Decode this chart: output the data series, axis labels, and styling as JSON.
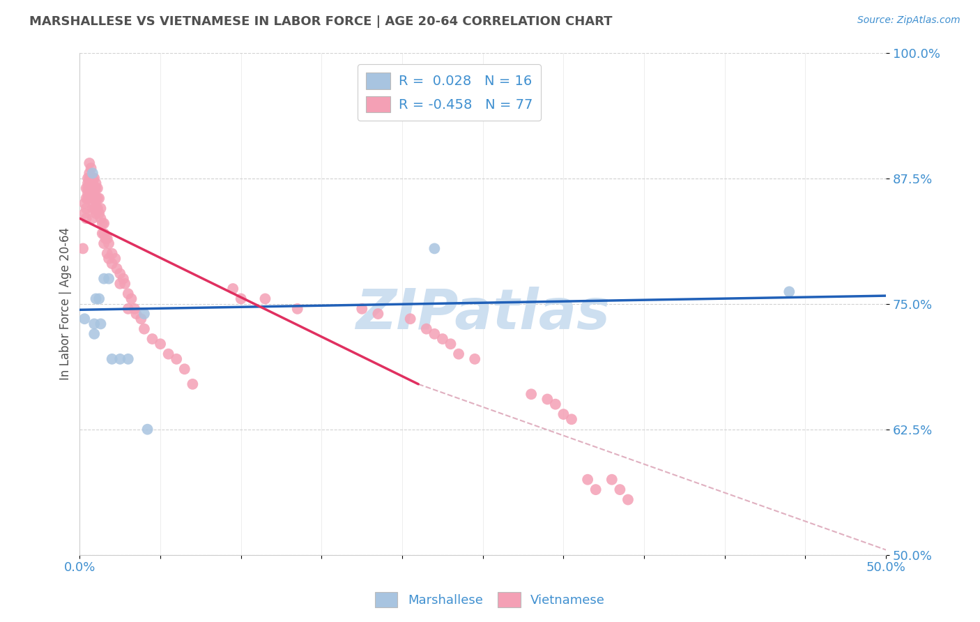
{
  "title": "MARSHALLESE VS VIETNAMESE IN LABOR FORCE | AGE 20-64 CORRELATION CHART",
  "source": "Source: ZipAtlas.com",
  "ylabel": "In Labor Force | Age 20-64",
  "xlim": [
    0.0,
    0.5
  ],
  "ylim": [
    0.5,
    1.0
  ],
  "yticks": [
    0.5,
    0.625,
    0.75,
    0.875,
    1.0
  ],
  "ytick_labels": [
    "50.0%",
    "62.5%",
    "75.0%",
    "87.5%",
    "100.0%"
  ],
  "xticks": [
    0.0,
    0.05,
    0.1,
    0.15,
    0.2,
    0.25,
    0.3,
    0.35,
    0.4,
    0.45,
    0.5
  ],
  "xtick_labels": [
    "0.0%",
    "",
    "",
    "",
    "",
    "",
    "",
    "",
    "",
    "",
    "50.0%"
  ],
  "marshallese_R": "0.028",
  "marshallese_N": "16",
  "vietnamese_R": "-0.458",
  "vietnamese_N": "77",
  "marshallese_color": "#a8c4e0",
  "vietnamese_color": "#f4a0b5",
  "marshallese_line_color": "#2060b8",
  "vietnamese_line_color": "#e03060",
  "dashed_extend_color": "#e0b0c0",
  "label_color": "#4090d0",
  "title_color": "#505050",
  "marshallese_x": [
    0.003,
    0.008,
    0.009,
    0.009,
    0.01,
    0.012,
    0.013,
    0.015,
    0.018,
    0.02,
    0.025,
    0.03,
    0.04,
    0.042,
    0.22,
    0.44
  ],
  "marshallese_y": [
    0.735,
    0.88,
    0.72,
    0.73,
    0.755,
    0.755,
    0.73,
    0.775,
    0.775,
    0.695,
    0.695,
    0.695,
    0.74,
    0.625,
    0.805,
    0.762
  ],
  "vietnamese_x": [
    0.002,
    0.003,
    0.003,
    0.004,
    0.004,
    0.004,
    0.004,
    0.005,
    0.005,
    0.005,
    0.005,
    0.005,
    0.006,
    0.006,
    0.006,
    0.006,
    0.006,
    0.007,
    0.007,
    0.007,
    0.007,
    0.007,
    0.007,
    0.008,
    0.008,
    0.008,
    0.008,
    0.008,
    0.008,
    0.009,
    0.009,
    0.009,
    0.009,
    0.009,
    0.01,
    0.01,
    0.01,
    0.01,
    0.01,
    0.011,
    0.011,
    0.011,
    0.012,
    0.012,
    0.013,
    0.013,
    0.014,
    0.014,
    0.015,
    0.015,
    0.015,
    0.016,
    0.017,
    0.017,
    0.018,
    0.018,
    0.02,
    0.02,
    0.022,
    0.023,
    0.025,
    0.025,
    0.027,
    0.028,
    0.03,
    0.03,
    0.032,
    0.034,
    0.035,
    0.038,
    0.04,
    0.045,
    0.05,
    0.055,
    0.06,
    0.065,
    0.07
  ],
  "vietnamese_y": [
    0.805,
    0.85,
    0.84,
    0.865,
    0.855,
    0.845,
    0.835,
    0.875,
    0.87,
    0.865,
    0.86,
    0.855,
    0.89,
    0.88,
    0.875,
    0.87,
    0.865,
    0.885,
    0.875,
    0.87,
    0.865,
    0.86,
    0.855,
    0.875,
    0.87,
    0.86,
    0.855,
    0.845,
    0.835,
    0.875,
    0.865,
    0.86,
    0.855,
    0.845,
    0.87,
    0.865,
    0.855,
    0.845,
    0.84,
    0.865,
    0.855,
    0.845,
    0.855,
    0.84,
    0.845,
    0.835,
    0.83,
    0.82,
    0.83,
    0.82,
    0.81,
    0.815,
    0.815,
    0.8,
    0.81,
    0.795,
    0.8,
    0.79,
    0.795,
    0.785,
    0.78,
    0.77,
    0.775,
    0.77,
    0.76,
    0.745,
    0.755,
    0.745,
    0.74,
    0.735,
    0.725,
    0.715,
    0.71,
    0.7,
    0.695,
    0.685,
    0.67
  ],
  "viet_extra_x": [
    0.095,
    0.1,
    0.115,
    0.135,
    0.175,
    0.185,
    0.205,
    0.215,
    0.22,
    0.225,
    0.23,
    0.235,
    0.245,
    0.28,
    0.29,
    0.295,
    0.3,
    0.305,
    0.315,
    0.32,
    0.33,
    0.335,
    0.34
  ],
  "viet_extra_y": [
    0.765,
    0.755,
    0.755,
    0.745,
    0.745,
    0.74,
    0.735,
    0.725,
    0.72,
    0.715,
    0.71,
    0.7,
    0.695,
    0.66,
    0.655,
    0.65,
    0.64,
    0.635,
    0.575,
    0.565,
    0.575,
    0.565,
    0.555
  ],
  "background_color": "#ffffff",
  "watermark_text": "ZIPatlas",
  "watermark_color": "#cddff0",
  "grid_color": "#cccccc",
  "marshallese_line_x0": 0.0,
  "marshallese_line_x1": 0.5,
  "marshallese_line_y0": 0.744,
  "marshallese_line_y1": 0.758,
  "vietnamese_line_x0": 0.0,
  "vietnamese_line_y0": 0.835,
  "vietnamese_line_x1_solid": 0.21,
  "vietnamese_line_y1_solid": 0.67,
  "vietnamese_line_x1_dash": 0.5,
  "vietnamese_line_y1_dash": 0.505
}
